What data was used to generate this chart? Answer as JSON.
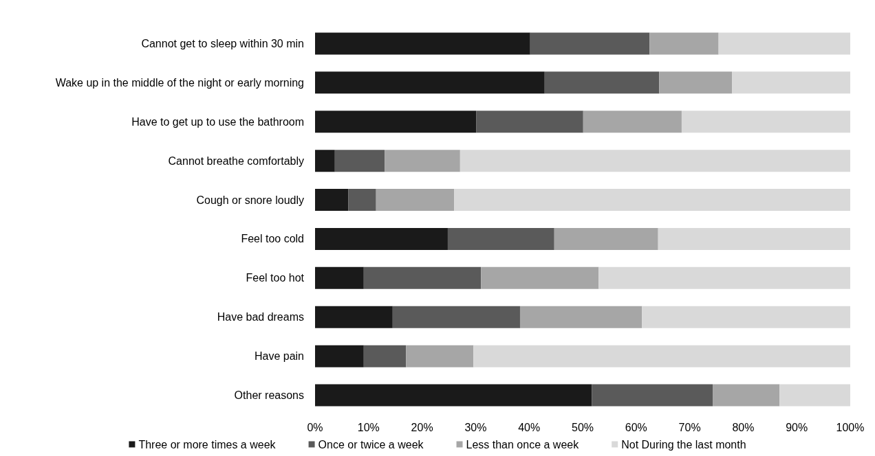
{
  "chart_data": {
    "type": "bar",
    "orientation": "horizontal",
    "stacked": true,
    "categories": [
      "Cannot get to sleep within 30 min",
      "Wake up in the middle of the night or early morning",
      "Have to get up to use the bathroom",
      "Cannot breathe comfortably",
      "Cough or snore loudly",
      "Feel too cold",
      "Feel too hot",
      "Have bad dreams",
      "Have pain",
      "Other reasons"
    ],
    "series": [
      {
        "name": "Three or more times a week",
        "color": "#1a1a1a",
        "values": [
          40.2,
          42.9,
          30.1,
          3.7,
          6.2,
          24.8,
          9.1,
          14.5,
          9.1,
          51.7
        ]
      },
      {
        "name": "Once or twice a week",
        "color": "#5a5a5a",
        "values": [
          22.3,
          21.4,
          20.0,
          9.3,
          5.2,
          19.9,
          21.9,
          23.8,
          7.9,
          22.6
        ]
      },
      {
        "name": "Less than once a week",
        "color": "#a6a6a6",
        "values": [
          12.9,
          13.6,
          18.4,
          14.1,
          14.6,
          19.4,
          22.0,
          22.8,
          12.6,
          12.5
        ]
      },
      {
        "name": "Not During the last month",
        "color": "#d9d9d9",
        "values": [
          24.6,
          22.1,
          31.5,
          72.9,
          74.0,
          35.9,
          47.0,
          38.9,
          70.4,
          13.2
        ]
      }
    ],
    "xlim": [
      0,
      100
    ],
    "xticks": [
      {
        "value": 0,
        "label": "0%"
      },
      {
        "value": 10,
        "label": "10%"
      },
      {
        "value": 20,
        "label": "20%"
      },
      {
        "value": 30,
        "label": "30%"
      },
      {
        "value": 40,
        "label": "40%"
      },
      {
        "value": 50,
        "label": "50%"
      },
      {
        "value": 60,
        "label": "60%"
      },
      {
        "value": 70,
        "label": "70%"
      },
      {
        "value": 80,
        "label": "80%"
      },
      {
        "value": 90,
        "label": "90%"
      },
      {
        "value": 100,
        "label": "100%"
      }
    ],
    "grid": false,
    "legend": "bottom"
  }
}
